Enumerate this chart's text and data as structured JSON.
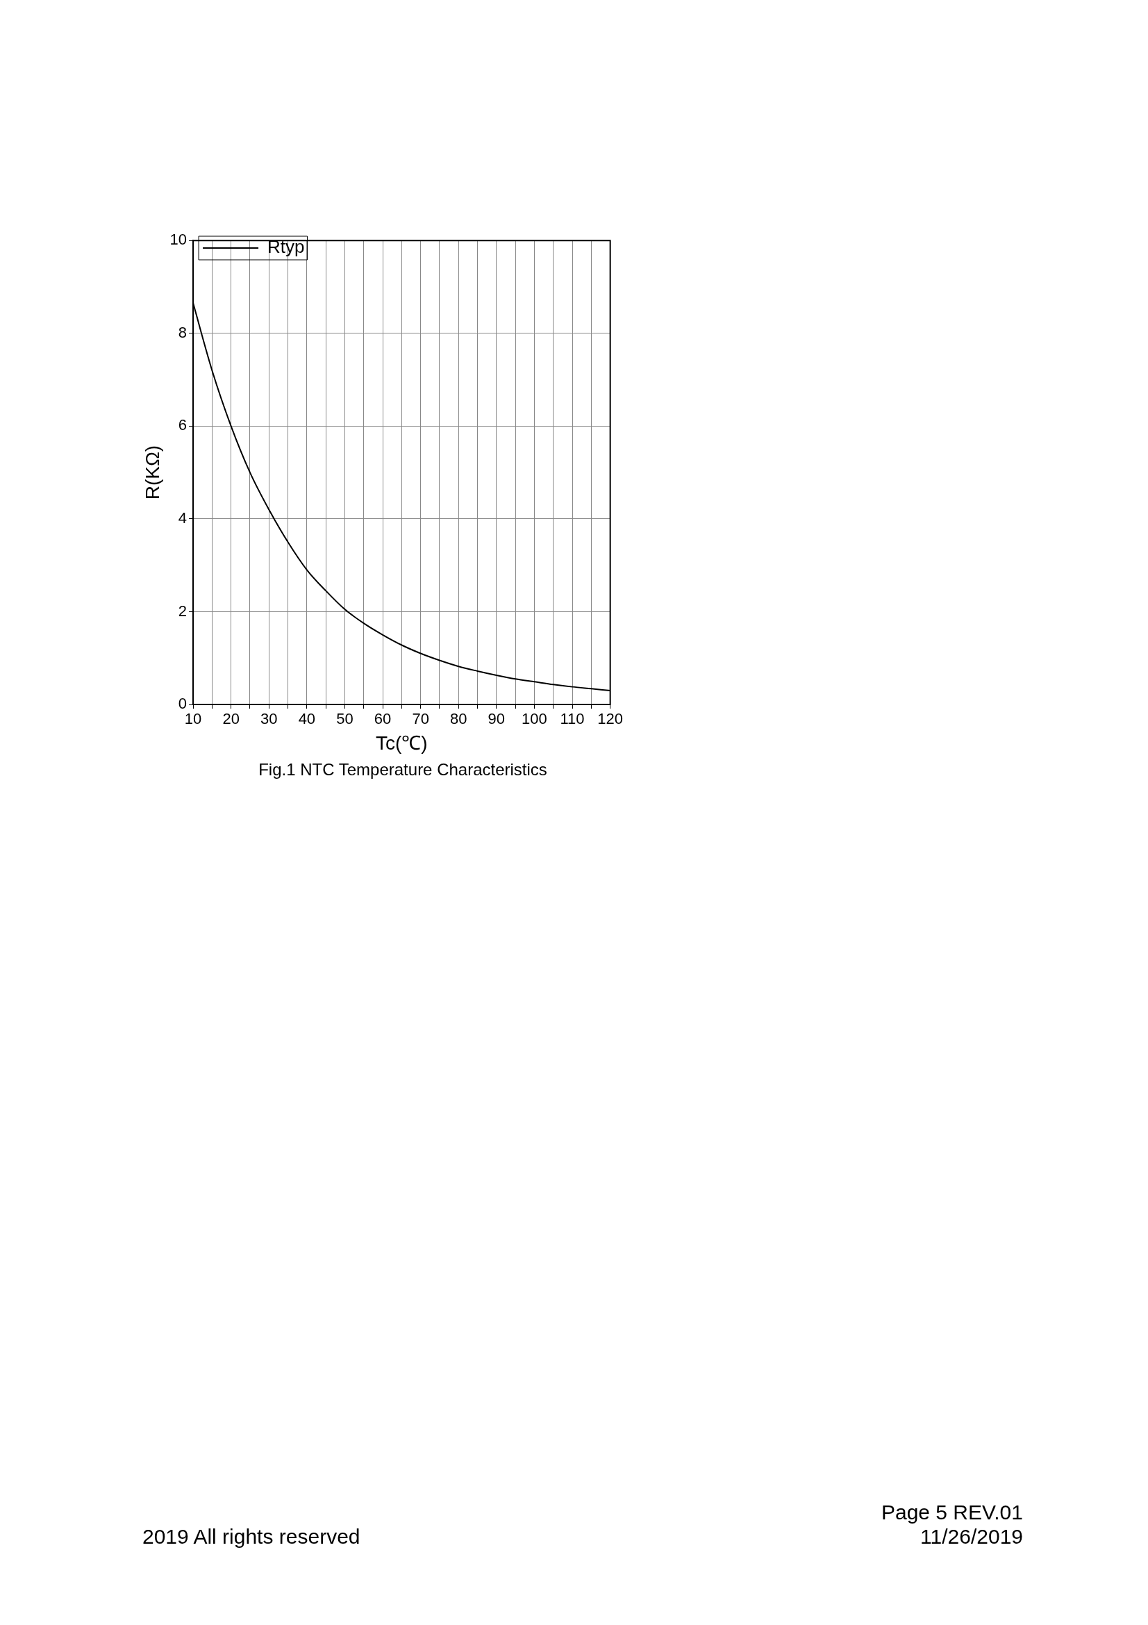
{
  "chart_data": {
    "type": "line",
    "title": "Fig.1 NTC Temperature Characteristics",
    "xlabel": "Tc(℃)",
    "ylabel": "R(KΩ)",
    "x": [
      10,
      15,
      20,
      25,
      30,
      35,
      40,
      45,
      50,
      55,
      60,
      65,
      70,
      75,
      80,
      85,
      90,
      95,
      100,
      105,
      110,
      115,
      120
    ],
    "series": [
      {
        "name": "Rtyp",
        "color": "#000000",
        "values": [
          8.65,
          7.2,
          6.0,
          5.0,
          4.2,
          3.5,
          2.9,
          2.45,
          2.05,
          1.75,
          1.5,
          1.28,
          1.1,
          0.95,
          0.82,
          0.72,
          0.63,
          0.55,
          0.49,
          0.43,
          0.38,
          0.34,
          0.3
        ]
      }
    ],
    "xlim": [
      10,
      120
    ],
    "xticks": [
      10,
      {
        "value": 15,
        "label": null
      },
      20,
      {
        "value": 25,
        "label": null
      },
      30,
      {
        "value": 35,
        "label": null
      },
      40,
      {
        "value": 45,
        "label": null
      },
      50,
      {
        "value": 55,
        "label": null
      },
      60,
      {
        "value": 65,
        "label": null
      },
      70,
      {
        "value": 75,
        "label": null
      },
      80,
      {
        "value": 85,
        "label": null
      },
      90,
      {
        "value": 95,
        "label": null
      },
      100,
      {
        "value": 105,
        "label": null
      },
      110,
      {
        "value": 115,
        "label": null
      },
      120
    ],
    "ylim": [
      0,
      10
    ],
    "yticks": [
      0,
      2,
      4,
      6,
      8,
      10
    ],
    "grid": true,
    "legend": "top left",
    "marker": "none",
    "line_style": "solid",
    "annotations": [
      "2019 All rights reserved",
      "Page 5  REV.01",
      "11/26/2019"
    ]
  }
}
